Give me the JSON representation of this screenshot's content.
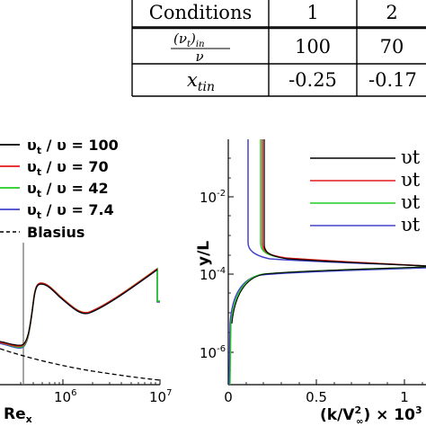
{
  "table": {
    "header": [
      "Conditions",
      "1",
      "2"
    ],
    "rows": [
      {
        "label_num": "(ν",
        "label_num_sub": "t",
        "label_num_close": ")",
        "label_num_sub2": "in",
        "label_den": "ν",
        "values": [
          "100",
          "70"
        ]
      },
      {
        "label": "x",
        "label_sub": "tin",
        "values": [
          "-0.25",
          "-0.17"
        ]
      }
    ]
  },
  "chart_data": [
    {
      "type": "line",
      "xscale": "log",
      "xlim": [
        200000,
        10000000
      ],
      "xlabel": "Re",
      "xlabel_sub": "x",
      "xticks": [
        "10",
        "10"
      ],
      "xticks_exp": [
        "6",
        "7"
      ],
      "legend_position": "top-left",
      "series": [
        {
          "name": "υt / υ = 100",
          "name_main": "υ",
          "name_sub": "t",
          "name_rest": " / υ = 100",
          "color": "#000000",
          "dash": "solid"
        },
        {
          "name": "υt / υ = 70",
          "name_main": "υ",
          "name_sub": "t",
          "name_rest": " / υ = 70",
          "color": "#e41a1c",
          "dash": "solid"
        },
        {
          "name": "υt / υ = 42",
          "name_main": "υ",
          "name_sub": "t",
          "name_rest": " / υ = 42",
          "color": "#22cc22",
          "dash": "solid"
        },
        {
          "name": "υt / υ = 7.4",
          "name_main": "υ",
          "name_sub": "t",
          "name_rest": " / υ = 7.4",
          "color": "#4444cc",
          "dash": "solid"
        },
        {
          "name": "Blasius",
          "color": "#000000",
          "dash": "dashed"
        }
      ],
      "marker_line_x": 400000
    },
    {
      "type": "line",
      "yscale": "log",
      "xlim": [
        0,
        1.6
      ],
      "ylim": [
        1e-07,
        0.3
      ],
      "ylabel": "y/L",
      "xlabel": "(k/V²) × 10³",
      "xlabel_parts": {
        "a": "(k/V",
        "sub": "∞",
        "sup": "2",
        "b": ") × 10",
        "sup2": "3"
      },
      "xticks": [
        "0",
        "0.5",
        "1"
      ],
      "yticks": [
        "10",
        "10",
        "10"
      ],
      "yticks_exp": [
        "-2",
        "-4",
        "-6"
      ],
      "legend_position": "top-right",
      "series": [
        {
          "name": "υt",
          "color": "#000000"
        },
        {
          "name": "υt",
          "color": "#e41a1c"
        },
        {
          "name": "υt",
          "color": "#22cc22"
        },
        {
          "name": "υt",
          "color": "#4444cc"
        }
      ]
    }
  ]
}
